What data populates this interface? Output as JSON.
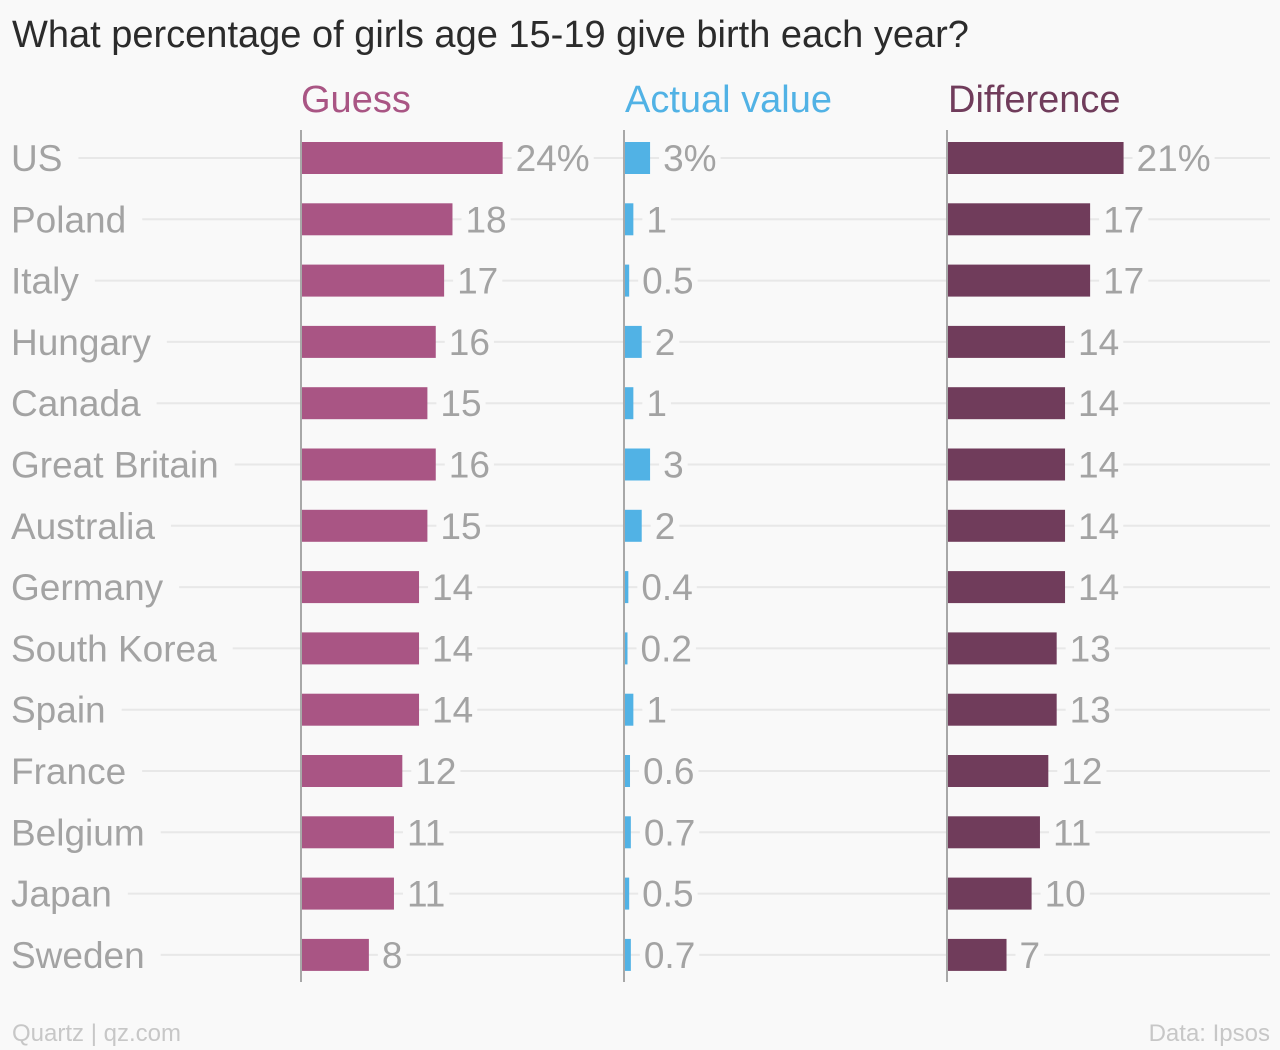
{
  "chart_data": {
    "type": "bar",
    "orientation": "horizontal",
    "title": "What percentage of girls age 15-19 give birth each year?",
    "categories": [
      "US",
      "Poland",
      "Italy",
      "Hungary",
      "Canada",
      "Great Britain",
      "Australia",
      "Germany",
      "South Korea",
      "Spain",
      "France",
      "Belgium",
      "Japan",
      "Sweden"
    ],
    "series": [
      {
        "name": "Guess",
        "color": "#a95584",
        "values": [
          24,
          18,
          17,
          16,
          15,
          16,
          15,
          14,
          14,
          14,
          12,
          11,
          11,
          8
        ],
        "labels": [
          "24%",
          "18",
          "17",
          "16",
          "15",
          "16",
          "15",
          "14",
          "14",
          "14",
          "12",
          "11",
          "11",
          "8"
        ]
      },
      {
        "name": "Actual value",
        "color": "#51b2e5",
        "values": [
          3,
          1,
          0.5,
          2,
          1,
          3,
          2,
          0.4,
          0.2,
          1,
          0.6,
          0.7,
          0.5,
          0.7
        ],
        "labels": [
          "3%",
          "1",
          "0.5",
          "2",
          "1",
          "3",
          "2",
          "0.4",
          "0.2",
          "1",
          "0.6",
          "0.7",
          "0.5",
          "0.7"
        ]
      },
      {
        "name": "Difference",
        "color": "#703c5b",
        "values": [
          21,
          17,
          17,
          14,
          14,
          14,
          14,
          14,
          13,
          13,
          12,
          11,
          10,
          7
        ],
        "labels": [
          "21%",
          "17",
          "17",
          "14",
          "14",
          "14",
          "14",
          "14",
          "13",
          "13",
          "12",
          "11",
          "10",
          "7"
        ]
      }
    ],
    "grid": true
  },
  "footer": {
    "source": "Quartz | qz.com",
    "credit": "Data: Ipsos"
  }
}
